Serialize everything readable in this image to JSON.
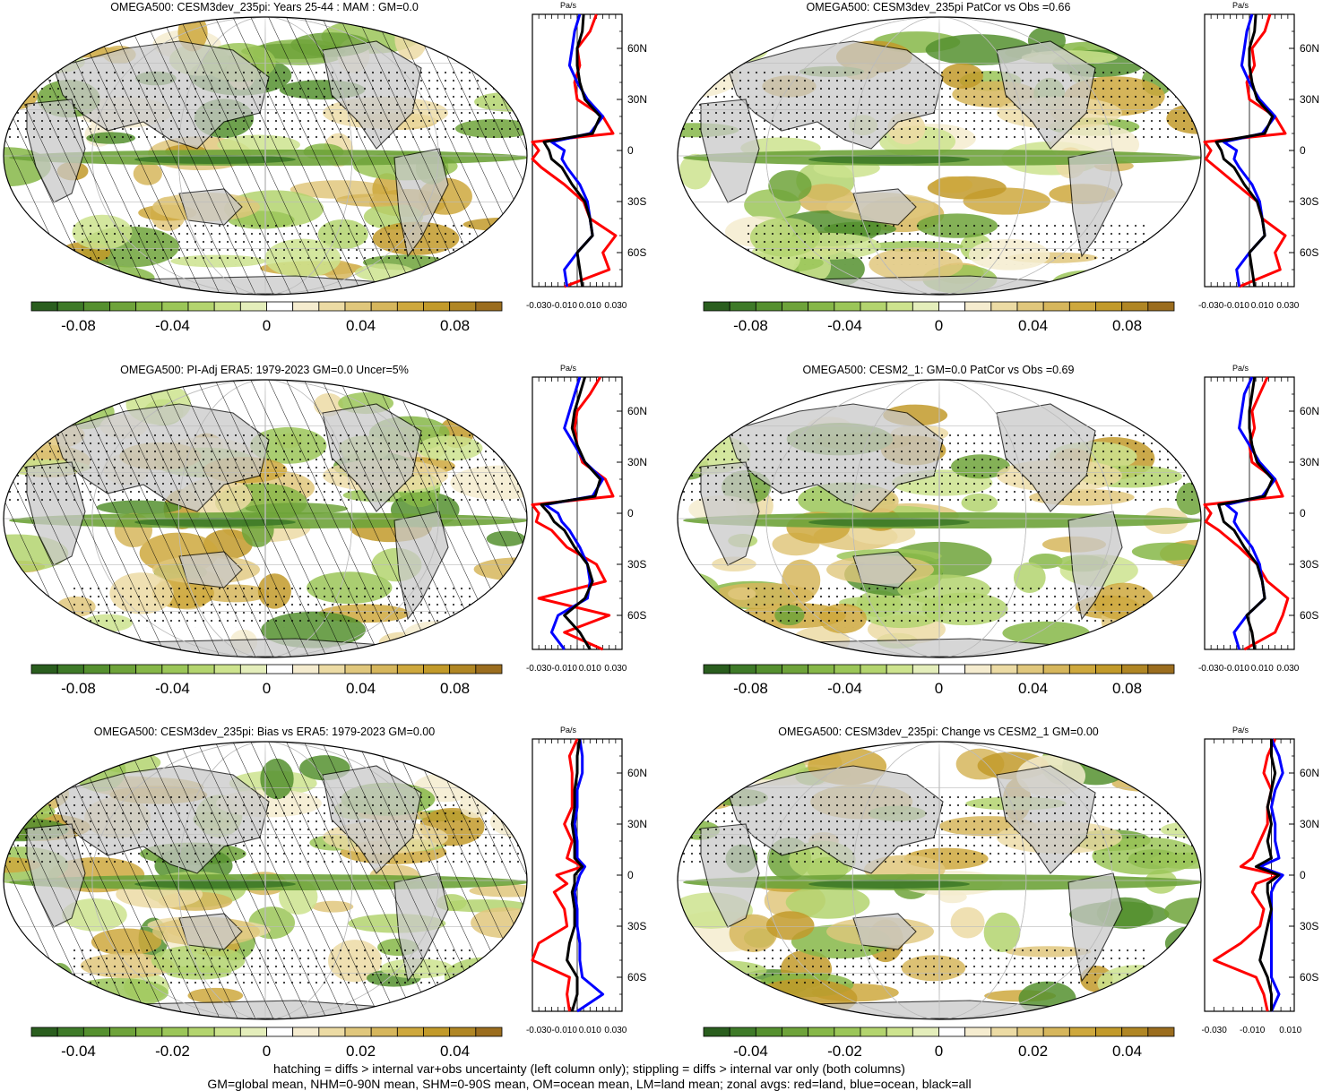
{
  "footer": {
    "line1": "hatching = diffs > internal var+obs uncertainty (left column only); stippling = diffs > internal var only (both columns)",
    "line2": "GM=global mean, NHM=0-90N mean, SHM=0-90S mean, OM=ocean mean, LM=land mean; zonal avgs: red=land, blue=ocean, black=all"
  },
  "colors": {
    "land_gray": "#c8c8c8",
    "ocean_white": "#ffffff",
    "green_dark": "#2b6a1f",
    "brown_dark": "#9b6d1e",
    "zonal_land": "#ff0000",
    "zonal_ocean": "#0000ff",
    "zonal_all": "#000000"
  },
  "colorbar_palette": [
    "#2a5e1e",
    "#3e7a28",
    "#55902f",
    "#6ea33a",
    "#86b748",
    "#9bc658",
    "#b3d46e",
    "#cde38e",
    "#e4eebb",
    "#ffffff",
    "#f5eccf",
    "#ecdba4",
    "#e0c77c",
    "#d6b65c",
    "#cea83d",
    "#c29a2a",
    "#b08624",
    "#9b6d1e"
  ],
  "panels": [
    {
      "title": "OMEGA500: CESM3dev_235pi: Years 25-44 : MAM : GM=0.0",
      "hatching": true,
      "colorbar": {
        "ticks": [
          "-0.08",
          "-0.04",
          "0",
          "0.04",
          "0.08"
        ]
      },
      "zonal": {
        "unit": "Pa/s",
        "xticks": [
          "-0.030",
          "-0.010",
          "0.010",
          "0.030"
        ],
        "lat_labels": [
          "60N",
          "30N",
          "0",
          "30S",
          "60S"
        ]
      }
    },
    {
      "title": "OMEGA500: CESM3dev_235pi PatCor vs Obs =0.66",
      "hatching": false,
      "colorbar": {
        "ticks": [
          "-0.08",
          "-0.04",
          "0",
          "0.04",
          "0.08"
        ]
      },
      "zonal": {
        "unit": "Pa/s",
        "xticks": [
          "-0.030",
          "-0.010",
          "0.010",
          "0.030"
        ],
        "lat_labels": [
          "60N",
          "30N",
          "0",
          "30S",
          "60S"
        ]
      }
    },
    {
      "title": "OMEGA500: PI-Adj ERA5: 1979-2023 GM=0.0 Uncer=5%",
      "hatching": true,
      "colorbar": {
        "ticks": [
          "-0.08",
          "-0.04",
          "0",
          "0.04",
          "0.08"
        ]
      },
      "zonal": {
        "unit": "Pa/s",
        "xticks": [
          "-0.030",
          "-0.010",
          "0.010",
          "0.030"
        ],
        "lat_labels": [
          "60N",
          "30N",
          "0",
          "30S",
          "60S"
        ]
      }
    },
    {
      "title": "OMEGA500: CESM2_1: GM=0.0 PatCor vs Obs =0.69",
      "hatching": false,
      "colorbar": {
        "ticks": [
          "-0.08",
          "-0.04",
          "0",
          "0.04",
          "0.08"
        ]
      },
      "zonal": {
        "unit": "Pa/s",
        "xticks": [
          "-0.030",
          "-0.010",
          "0.010",
          "0.030"
        ],
        "lat_labels": [
          "60N",
          "30N",
          "0",
          "30S",
          "60S"
        ]
      }
    },
    {
      "title": "OMEGA500: CESM3dev_235pi: Bias vs ERA5: 1979-2023 GM=0.00",
      "hatching": true,
      "colorbar": {
        "ticks": [
          "-0.04",
          "-0.02",
          "0",
          "0.02",
          "0.04"
        ]
      },
      "zonal": {
        "unit": "Pa/s",
        "xticks": [
          "-0.030",
          "-0.010",
          "0.010",
          "0.030"
        ],
        "lat_labels": [
          "60N",
          "30N",
          "0",
          "30S",
          "60S"
        ]
      }
    },
    {
      "title": "OMEGA500: CESM3dev_235pi: Change vs CESM2_1 GM=0.00",
      "hatching": false,
      "colorbar": {
        "ticks": [
          "-0.04",
          "-0.02",
          "0",
          "0.02",
          "0.04"
        ]
      },
      "zonal": {
        "unit": "Pa/s",
        "xticks": [
          "-0.030",
          "-0.010",
          "0.010"
        ],
        "lat_labels": [
          "60N",
          "30N",
          "0",
          "30S",
          "60S"
        ]
      }
    }
  ],
  "chart_data": [
    {
      "type": "heatmap",
      "title": "OMEGA500: CESM3dev_235pi: Years 25-44 : MAM : GM=0.0",
      "colorbar_range": [
        -0.1,
        0.1
      ],
      "colorbar_ticks": [
        -0.08,
        -0.04,
        0,
        0.04,
        0.08
      ],
      "zonal_profile": {
        "xlim": [
          -0.035,
          0.035
        ],
        "lat": [
          80,
          70,
          60,
          50,
          40,
          30,
          20,
          10,
          5,
          0,
          -5,
          -10,
          -20,
          -30,
          -40,
          -50,
          -60,
          -70,
          -80
        ],
        "series": [
          {
            "name": "land",
            "color": "#ff0000",
            "values": [
              0.015,
              0.01,
              0.0,
              0.002,
              -0.002,
              0.0,
              0.02,
              0.028,
              -0.035,
              -0.03,
              -0.035,
              -0.028,
              -0.01,
              0.005,
              0.01,
              0.03,
              0.02,
              0.025,
              -0.01
            ]
          },
          {
            "name": "ocean",
            "color": "#0000ff",
            "values": [
              0.002,
              -0.002,
              -0.004,
              -0.006,
              0.0,
              0.008,
              0.02,
              0.01,
              -0.02,
              -0.01,
              -0.012,
              -0.008,
              0.002,
              0.008,
              0.01,
              0.012,
              0.0,
              -0.01,
              -0.008
            ]
          },
          {
            "name": "all",
            "color": "#000000",
            "values": [
              0.005,
              0.004,
              0.0,
              0.0,
              0.002,
              0.006,
              0.018,
              0.012,
              -0.026,
              -0.022,
              -0.02,
              -0.012,
              -0.004,
              0.006,
              0.01,
              0.012,
              0.0,
              0.002,
              0.004
            ]
          }
        ]
      }
    },
    {
      "type": "heatmap",
      "title": "OMEGA500: CESM3dev_235pi PatCor vs Obs =0.66",
      "colorbar_range": [
        -0.1,
        0.1
      ],
      "colorbar_ticks": [
        -0.08,
        -0.04,
        0,
        0.04,
        0.08
      ],
      "zonal_profile": {
        "xlim": [
          -0.035,
          0.035
        ],
        "lat": [
          80,
          70,
          60,
          50,
          40,
          30,
          20,
          10,
          5,
          0,
          -5,
          -10,
          -20,
          -30,
          -40,
          -50,
          -60,
          -70,
          -80
        ],
        "series": [
          {
            "name": "land",
            "color": "#ff0000",
            "values": [
              0.016,
              0.012,
              0.002,
              0.004,
              -0.002,
              0.0,
              0.02,
              0.028,
              -0.035,
              -0.03,
              -0.034,
              -0.026,
              -0.01,
              0.006,
              0.01,
              0.028,
              0.02,
              0.024,
              -0.008
            ]
          },
          {
            "name": "ocean",
            "color": "#0000ff",
            "values": [
              0.002,
              -0.002,
              -0.004,
              -0.006,
              0.0,
              0.008,
              0.02,
              0.01,
              -0.02,
              -0.01,
              -0.012,
              -0.008,
              0.002,
              0.008,
              0.01,
              0.012,
              0.0,
              -0.01,
              -0.008
            ]
          },
          {
            "name": "all",
            "color": "#000000",
            "values": [
              0.005,
              0.004,
              0.0,
              0.0,
              0.002,
              0.006,
              0.018,
              0.012,
              -0.026,
              -0.022,
              -0.02,
              -0.012,
              -0.004,
              0.006,
              0.01,
              0.012,
              0.0,
              0.002,
              0.004
            ]
          }
        ]
      }
    },
    {
      "type": "heatmap",
      "title": "OMEGA500: PI-Adj ERA5: 1979-2023 GM=0.0 Uncer=5%",
      "colorbar_range": [
        -0.1,
        0.1
      ],
      "colorbar_ticks": [
        -0.08,
        -0.04,
        0,
        0.04,
        0.08
      ],
      "zonal_profile": {
        "xlim": [
          -0.035,
          0.035
        ],
        "lat": [
          80,
          70,
          60,
          50,
          40,
          30,
          20,
          10,
          5,
          0,
          -5,
          -10,
          -20,
          -30,
          -40,
          -50,
          -60,
          -70,
          -80
        ],
        "series": [
          {
            "name": "land",
            "color": "#ff0000",
            "values": [
              0.018,
              0.01,
              0.0,
              -0.002,
              0.0,
              0.004,
              0.022,
              0.028,
              -0.035,
              -0.03,
              -0.032,
              -0.02,
              -0.008,
              0.015,
              0.022,
              -0.03,
              0.025,
              -0.01,
              0.02
            ]
          },
          {
            "name": "ocean",
            "color": "#0000ff",
            "values": [
              0.002,
              -0.002,
              -0.006,
              -0.01,
              -0.002,
              0.006,
              0.02,
              0.012,
              -0.025,
              -0.015,
              -0.012,
              -0.006,
              0.002,
              0.008,
              0.01,
              0.008,
              -0.015,
              -0.02,
              -0.01
            ]
          },
          {
            "name": "all",
            "color": "#000000",
            "values": [
              0.006,
              0.002,
              -0.002,
              -0.004,
              0.0,
              0.006,
              0.018,
              0.014,
              -0.028,
              -0.022,
              -0.018,
              -0.01,
              -0.002,
              0.008,
              0.012,
              0.006,
              -0.01,
              0.002,
              0.01
            ]
          }
        ]
      }
    },
    {
      "type": "heatmap",
      "title": "OMEGA500: CESM2_1: GM=0.0 PatCor vs Obs =0.69",
      "colorbar_range": [
        -0.1,
        0.1
      ],
      "colorbar_ticks": [
        -0.08,
        -0.04,
        0,
        0.04,
        0.08
      ],
      "zonal_profile": {
        "xlim": [
          -0.035,
          0.035
        ],
        "lat": [
          80,
          70,
          60,
          50,
          40,
          30,
          20,
          10,
          5,
          0,
          -5,
          -10,
          -20,
          -30,
          -40,
          -50,
          -60,
          -70,
          -80
        ],
        "series": [
          {
            "name": "land",
            "color": "#ff0000",
            "values": [
              0.014,
              0.008,
              0.002,
              0.004,
              0.0,
              0.002,
              0.02,
              0.026,
              -0.035,
              -0.03,
              -0.034,
              -0.024,
              -0.008,
              0.006,
              0.014,
              0.03,
              0.026,
              0.02,
              -0.004
            ]
          },
          {
            "name": "ocean",
            "color": "#0000ff",
            "values": [
              0.002,
              -0.004,
              -0.006,
              -0.008,
              0.0,
              0.008,
              0.02,
              0.01,
              -0.018,
              -0.01,
              -0.012,
              -0.008,
              0.002,
              0.008,
              0.01,
              0.012,
              -0.002,
              -0.012,
              -0.008
            ]
          },
          {
            "name": "all",
            "color": "#000000",
            "values": [
              0.004,
              0.002,
              0.0,
              0.0,
              0.002,
              0.006,
              0.018,
              0.012,
              -0.024,
              -0.022,
              -0.02,
              -0.012,
              -0.004,
              0.006,
              0.01,
              0.012,
              -0.002,
              0.002,
              0.004
            ]
          }
        ]
      }
    },
    {
      "type": "heatmap",
      "title": "OMEGA500: CESM3dev_235pi: Bias vs ERA5: 1979-2023 GM=0.00",
      "colorbar_range": [
        -0.05,
        0.05
      ],
      "colorbar_ticks": [
        -0.04,
        -0.02,
        0,
        0.02,
        0.04
      ],
      "zonal_profile": {
        "xlim": [
          -0.035,
          0.035
        ],
        "lat": [
          80,
          70,
          60,
          50,
          40,
          30,
          20,
          10,
          5,
          0,
          -5,
          -10,
          -20,
          -30,
          -40,
          -50,
          -60,
          -70,
          -80
        ],
        "series": [
          {
            "name": "land",
            "color": "#ff0000",
            "values": [
              0.0,
              -0.006,
              -0.004,
              -0.004,
              -0.004,
              -0.01,
              -0.004,
              -0.008,
              0.004,
              -0.016,
              -0.008,
              -0.018,
              -0.01,
              -0.008,
              -0.03,
              -0.035,
              -0.006,
              -0.008,
              -0.006
            ]
          },
          {
            "name": "ocean",
            "color": "#0000ff",
            "values": [
              0.002,
              0.004,
              0.004,
              0.0,
              0.0,
              -0.002,
              0.0,
              0.0,
              0.006,
              0.002,
              0.0,
              -0.002,
              0.0,
              0.0,
              0.002,
              0.002,
              0.004,
              0.02,
              0.0
            ]
          },
          {
            "name": "all",
            "color": "#000000",
            "values": [
              0.002,
              0.0,
              0.0,
              -0.002,
              -0.002,
              -0.004,
              -0.002,
              -0.002,
              0.004,
              -0.002,
              -0.002,
              -0.004,
              -0.002,
              -0.002,
              -0.006,
              -0.008,
              0.0,
              0.0,
              -0.004
            ]
          }
        ]
      }
    },
    {
      "type": "heatmap",
      "title": "OMEGA500: CESM3dev_235pi: Change vs CESM2_1 GM=0.00",
      "colorbar_range": [
        -0.05,
        0.05
      ],
      "colorbar_ticks": [
        -0.04,
        -0.02,
        0,
        0.02,
        0.04
      ],
      "zonal_profile": {
        "xlim": [
          -0.035,
          0.012
        ],
        "lat": [
          80,
          70,
          60,
          50,
          40,
          30,
          20,
          10,
          5,
          0,
          -5,
          -10,
          -20,
          -30,
          -40,
          -50,
          -60,
          -70,
          -80
        ],
        "series": [
          {
            "name": "land",
            "color": "#ff0000",
            "values": [
              0.002,
              -0.002,
              -0.004,
              0.0,
              -0.002,
              -0.002,
              -0.006,
              -0.01,
              -0.016,
              0.004,
              -0.008,
              -0.01,
              -0.004,
              -0.006,
              -0.016,
              -0.03,
              -0.008,
              -0.004,
              -0.002
            ]
          },
          {
            "name": "ocean",
            "color": "#0000ff",
            "values": [
              0.0,
              0.004,
              0.006,
              0.002,
              0.0,
              0.002,
              0.002,
              0.004,
              -0.006,
              0.006,
              0.002,
              0.0,
              0.0,
              0.0,
              0.0,
              0.0,
              0.0,
              0.004,
              0.0
            ]
          },
          {
            "name": "all",
            "color": "#000000",
            "values": [
              0.0,
              0.0,
              0.002,
              0.0,
              -0.002,
              0.0,
              -0.002,
              0.0,
              -0.008,
              0.004,
              -0.002,
              -0.002,
              0.0,
              -0.002,
              -0.004,
              -0.006,
              -0.002,
              0.0,
              0.0
            ]
          }
        ]
      }
    }
  ]
}
